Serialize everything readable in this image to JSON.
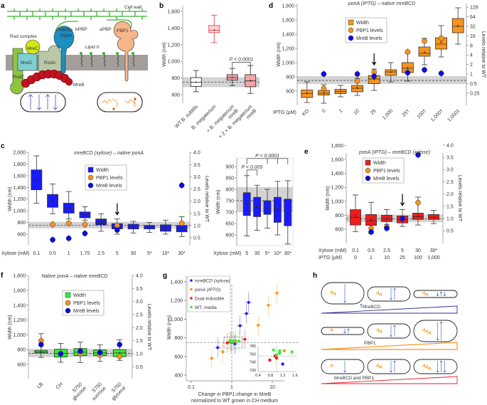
{
  "panel_labels": {
    "a": "a",
    "b": "b",
    "c": "c",
    "d": "d",
    "e": "e",
    "f": "f",
    "g": "g",
    "h": "h"
  },
  "panel_a": {
    "cell_wall": "Cell wall",
    "rod_complex": "Rod complex",
    "mrec": "MreC",
    "mred": "MreD",
    "roda": "RodA",
    "rodz": "RodZ",
    "mreb": "MreB",
    "pbp2a": "PBP2a",
    "pbph": "PbpH",
    "bpbp": "bPBP",
    "apbp": "aPBP",
    "pbp1": "PBP1",
    "lipid2": "Lipid II",
    "colors": {
      "wall": "#3cb034",
      "membrane": "#a39e99",
      "rodz": "#8cc63f",
      "mred": "#7fcfcf",
      "mrec": "#d4e61a",
      "roda": "#b9c9a8",
      "mreb": "#c1121f",
      "pbp2a": "#1a8fc0",
      "pbp1": "#f7b58a"
    }
  },
  "panel_h": {
    "mrebcd": "MreBCD",
    "pbp1": "PBP1",
    "both": "MreBCD and PBP1",
    "colors": {
      "mrebcd": "#2e3192",
      "pbp1": "#f7941d",
      "both": "#ee1c25",
      "arrows": "#4a6fc4"
    }
  },
  "chart_data": [
    {
      "id": "b",
      "type": "box",
      "title": "",
      "ylabel": "Width (nm)",
      "categories": [
        [
          "WT B. subtilis"
        ],
        [
          "B. megaterium"
        ],
        [
          "+ B. megaterium",
          "mreB"
        ],
        [
          "+ 2 × B. megaterium",
          "mreB"
        ]
      ],
      "boxes": [
        [
          635,
          700,
          750,
          805,
          890,
          755
        ],
        [
          1225,
          1345,
          1375,
          1430,
          1555,
          1378
        ],
        [
          710,
          775,
          805,
          840,
          915,
          808
        ],
        [
          615,
          695,
          765,
          840,
          950,
          770
        ]
      ],
      "box_colors": [
        "#ffffff",
        "#ffd6d8",
        "#f7a3a8",
        "#f7a3a8"
      ],
      "box_edges": [
        "#222222",
        "#e8303a",
        "#222222",
        "#222222"
      ],
      "y_ticks": [
        600,
        800,
        1000,
        1200,
        1400,
        1600
      ],
      "ylim": [
        550,
        1650
      ],
      "wt_band": [
        690,
        810
      ],
      "wt_mean": 750,
      "annotations": [
        {
          "text": "P < 0.0001",
          "from": 2,
          "to": [
            3
          ],
          "at": 990
        }
      ]
    },
    {
      "id": "d",
      "type": "box",
      "title": "ponA (IPTG) – native mreBCD",
      "ylabel": "Width (nm)",
      "y2label": "Levels relative to WT",
      "xlabel": "IPTG (µM)",
      "categories": [
        [
          "KO"
        ],
        [
          "0"
        ],
        [
          "1"
        ],
        [
          "10"
        ],
        [
          "25"
        ],
        [
          "1,000"
        ],
        [
          "25†"
        ],
        [
          "100†"
        ],
        [
          "1,000†"
        ],
        [
          "1,000‡"
        ]
      ],
      "boxes": [
        [
          440,
          510,
          565,
          615,
          730,
          575
        ],
        [
          430,
          545,
          570,
          610,
          690,
          575
        ],
        [
          520,
          565,
          595,
          625,
          680,
          600
        ],
        [
          540,
          590,
          640,
          680,
          780,
          650
        ],
        [
          610,
          705,
          770,
          820,
          910,
          765
        ],
        [
          730,
          820,
          870,
          900,
          1000,
          870
        ],
        [
          740,
          860,
          920,
          1000,
          1130,
          930
        ],
        [
          970,
          1090,
          1130,
          1220,
          1340,
          1150
        ],
        [
          1080,
          1190,
          1260,
          1350,
          1520,
          1290
        ],
        [
          1260,
          1420,
          1510,
          1620,
          1770,
          1520
        ]
      ],
      "box_color": "#f7941d",
      "pbp1_levels": [
        null,
        0.35,
        null,
        0.6,
        1.15,
        null,
        5,
        11,
        13.5,
        null
      ],
      "mreb_levels": [
        null,
        1.0,
        null,
        1.0,
        0.85,
        null,
        1.1,
        1.35,
        1.05,
        null
      ],
      "y_ticks": [
        600,
        800,
        1000,
        1200,
        1400,
        1600,
        1800
      ],
      "ylim": [
        380,
        1820
      ],
      "y2_ticks": [
        0.25,
        0.5,
        1,
        2,
        4,
        8,
        16,
        32,
        64,
        128
      ],
      "y2_scale": "log2",
      "wt_band": [
        700,
        810
      ],
      "wt_mean": 750,
      "arrow_at": 4,
      "legend": [
        "Width",
        "PBP1 levels",
        "MreB levels"
      ],
      "legend_position": "top-center"
    },
    {
      "id": "c",
      "type": "box",
      "title": "mreBCD (xylose) – native ponA",
      "ylabel": "Width (nm)",
      "y2label": "Levels relative to WT",
      "xlabel": "Xylose (mM)",
      "categories": [
        [
          "0.1"
        ],
        [
          "0.5"
        ],
        [
          "1"
        ],
        [
          "1.75"
        ],
        [
          "2.5"
        ],
        [
          "5"
        ],
        [
          "30"
        ],
        [
          "5*"
        ],
        [
          "10*"
        ],
        [
          "30*"
        ]
      ],
      "boxes": [
        [
          1130,
          1360,
          1530,
          1700,
          1940,
          1540
        ],
        [
          950,
          1060,
          1160,
          1280,
          1460,
          1170
        ],
        [
          860,
          960,
          1030,
          1130,
          1330,
          1050
        ],
        [
          840,
          880,
          930,
          980,
          1070,
          930
        ],
        [
          650,
          760,
          800,
          860,
          950,
          810
        ],
        [
          600,
          690,
          740,
          780,
          860,
          735
        ],
        [
          620,
          690,
          720,
          770,
          820,
          720
        ],
        [
          630,
          690,
          720,
          750,
          800,
          720
        ],
        [
          600,
          650,
          700,
          760,
          840,
          710
        ],
        [
          560,
          640,
          690,
          750,
          900,
          695
        ]
      ],
      "box_color": "#1a1aff",
      "pbp1_levels": [
        null,
        1.05,
        1.1,
        1.05,
        null,
        1.0,
        null,
        null,
        null,
        1.1
      ],
      "mreb_levels": [
        null,
        0.42,
        0.48,
        0.68,
        null,
        0.82,
        null,
        null,
        null,
        2.65
      ],
      "y_ticks": [
        600,
        800,
        1000,
        1200,
        1400,
        1600,
        1800,
        2000
      ],
      "ylim": [
        400,
        2050
      ],
      "y2_ticks": [
        0.5,
        1.0,
        1.5,
        2.0,
        2.5,
        3.0,
        3.5,
        4.0
      ],
      "y2_scale": "linear",
      "wt_band": [
        700,
        810
      ],
      "wt_mean": 750,
      "arrow_at": 5,
      "legend": [
        "Width",
        "PBP1 levels",
        "MreB levels"
      ],
      "legend_position": "top-center"
    },
    {
      "id": "c-inset",
      "type": "box",
      "title": "",
      "ylabel": "Width (nm)",
      "xlabel": "Xylose (mM)",
      "categories": [
        [
          "5"
        ],
        [
          "30"
        ],
        [
          "5*"
        ],
        [
          "10*"
        ],
        [
          "30*"
        ]
      ],
      "boxes": [
        [
          595,
          685,
          745,
          785,
          860,
          735
        ],
        [
          620,
          680,
          725,
          765,
          818,
          725
        ],
        [
          630,
          690,
          720,
          750,
          800,
          718
        ],
        [
          600,
          655,
          715,
          765,
          835,
          710
        ],
        [
          560,
          640,
          695,
          757,
          838,
          695
        ]
      ],
      "box_color": "#1a1aff",
      "y_ticks": [
        600,
        650,
        700,
        750,
        800,
        850,
        900
      ],
      "ylim": [
        555,
        925
      ],
      "wt_band": [
        700,
        810
      ],
      "wt_mean": 750,
      "annotations": [
        {
          "text": "P < 0.005",
          "from": 0,
          "to": [
            1
          ],
          "at": 885
        },
        {
          "text": "P < 0.0001",
          "from": 0,
          "to": [
            2,
            3,
            4
          ],
          "at": 935
        }
      ]
    },
    {
      "id": "e",
      "type": "box",
      "title": "ponA (IPTG) – mreBCD (xylose)",
      "ylabel": "Width (nm)",
      "y2label": "Levels relative to WT",
      "xlabel": "Xylose (mM)",
      "xlabel2": "IPTG (µM)",
      "categories": [
        [
          "0.1"
        ],
        [
          "0.5"
        ],
        [
          "2.5"
        ],
        [
          "5"
        ],
        [
          "30"
        ],
        [
          "30*"
        ]
      ],
      "categories2": [
        "0",
        "1",
        "10",
        "25",
        "100",
        "1,000"
      ],
      "boxes": [
        [
          565,
          660,
          770,
          880,
          1090,
          790
        ],
        [
          540,
          655,
          720,
          810,
          985,
          740
        ],
        [
          670,
          710,
          750,
          800,
          880,
          755
        ],
        [
          640,
          690,
          740,
          790,
          880,
          750
        ],
        [
          660,
          740,
          780,
          830,
          1060,
          790
        ],
        [
          680,
          740,
          770,
          810,
          870,
          775
        ]
      ],
      "box_color": "#ee1c1c",
      "pbp1_levels": [
        null,
        0.6,
        0.65,
        1.0,
        1.65,
        null
      ],
      "mreb_levels": [
        null,
        0.45,
        0.6,
        1.0,
        3.6,
        null
      ],
      "y_ticks": [
        600,
        800,
        1000,
        1200,
        1400,
        1600,
        1800
      ],
      "ylim": [
        400,
        1820
      ],
      "y2_ticks": [
        0.5,
        1.0,
        1.5,
        2.0,
        2.5,
        3.0,
        3.5,
        4.0
      ],
      "y2_scale": "linear",
      "wt_band": [
        700,
        810
      ],
      "wt_mean": 750,
      "arrow_at": 3,
      "legend": [
        "Width",
        "PBP1 levels",
        "MreB levels"
      ],
      "legend_position": "top-center"
    },
    {
      "id": "f",
      "type": "box",
      "title": "Native ponA – native mreBCD",
      "ylabel": "Width (nm)",
      "y2label": "Levels relative to WT",
      "categories": [
        [
          "LB"
        ],
        [
          "CH"
        ],
        [
          "S750",
          "glucose"
        ],
        [
          "S750",
          "sucrose"
        ],
        [
          "S750",
          "glycerol"
        ]
      ],
      "boxes": [
        [
          695,
          755,
          770,
          790,
          1015,
          770
        ],
        [
          630,
          700,
          750,
          805,
          885,
          750
        ],
        [
          625,
          720,
          765,
          815,
          900,
          770
        ],
        [
          640,
          720,
          755,
          795,
          865,
          755
        ],
        [
          655,
          705,
          755,
          800,
          935,
          760
        ]
      ],
      "box_color": "#33ee33",
      "pbp1_levels": [
        1.5,
        null,
        1.0,
        0.95,
        0.9
      ],
      "mreb_levels": [
        1.35,
        1.0,
        1.1,
        1.05,
        1.35
      ],
      "y_ticks": [
        600,
        800,
        1000,
        1200,
        1400,
        1600,
        1800
      ],
      "ylim": [
        420,
        1820
      ],
      "y2_ticks": [
        0.5,
        1.0,
        1.5,
        2.0,
        2.5,
        3.0,
        3.5,
        4.0
      ],
      "y2_scale": "linear",
      "wt_band": [
        700,
        810
      ],
      "wt_mean": 750,
      "legend": [
        "Width",
        "PBP1 levels",
        "MreB levels"
      ],
      "legend_position": "top-center"
    },
    {
      "id": "g",
      "type": "scatter",
      "title": "",
      "ylabel": "Width (nm)",
      "xlabel": [
        "Change in PBP1:change in MreB",
        "normalized to WT grown in CH medium"
      ],
      "x_scale": "log",
      "x_ticks": [
        0.1,
        1,
        10
      ],
      "xlim": [
        0.1,
        30
      ],
      "y_ticks": [
        400,
        600,
        800,
        1000,
        1200,
        1400
      ],
      "ylim": [
        380,
        1450
      ],
      "ref_x": 1,
      "ref_y": 750,
      "legend_position": "top-left",
      "series": [
        {
          "name": "mreBCD (xylose)",
          "color": "#1a1aff",
          "x": [
            0.45,
            1.2,
            1.6,
            2.3,
            2.6
          ],
          "y": [
            695,
            735,
            930,
            1060,
            1180
          ]
        },
        {
          "name": "ponA (IPTG)",
          "color": "#f7941d",
          "x": [
            0.32,
            0.6,
            4.5,
            8,
            13,
            1.25
          ],
          "y": [
            580,
            650,
            935,
            1150,
            1280,
            768
          ]
        },
        {
          "name": "Dual-inducible",
          "color": "#ee1c1c",
          "x": [
            0.78,
            0.95,
            1.0,
            2.1
          ],
          "y": [
            745,
            755,
            750,
            785
          ]
        },
        {
          "name": "WT, media",
          "color": "#33ee33",
          "x": [
            0.9,
            1.1,
            1.1,
            1.5,
            1.0
          ],
          "y": [
            770,
            768,
            762,
            765,
            758
          ]
        }
      ],
      "inset": {
        "x_ticks": [
          0.4,
          0.8,
          1.2,
          1.6
        ],
        "y_ticks": [
          720,
          740,
          760,
          780
        ],
        "xlim": [
          0.4,
          1.6
        ],
        "ylim": [
          720,
          785
        ]
      }
    }
  ]
}
